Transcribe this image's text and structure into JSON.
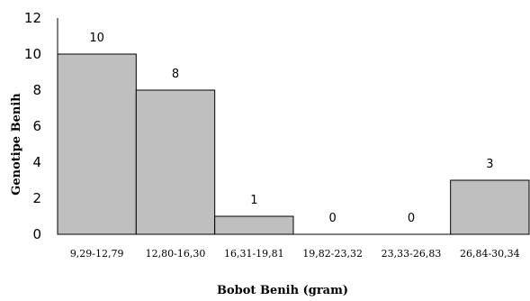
{
  "chart_data": {
    "type": "bar",
    "categories": [
      "9,29-12,79",
      "12,80-16,30",
      "16,31-19,81",
      "19,82-23,32",
      "23,33-26,83",
      "26,84-30,34"
    ],
    "values": [
      10,
      8,
      1,
      0,
      0,
      3
    ],
    "data_labels": [
      "10",
      "8",
      "1",
      "0",
      "0",
      "3"
    ],
    "xlabel": "Bobot Benih (gram)",
    "ylabel": "Genotipe Benih",
    "ylim": [
      0,
      12
    ],
    "yticks": [
      "0",
      "2",
      "4",
      "6",
      "8",
      "10",
      "12"
    ],
    "grid": false,
    "legend": "none",
    "colors": {
      "bar_fill": "#bfbfbf",
      "bar_stroke": "#000000",
      "axis": "#000000"
    }
  }
}
